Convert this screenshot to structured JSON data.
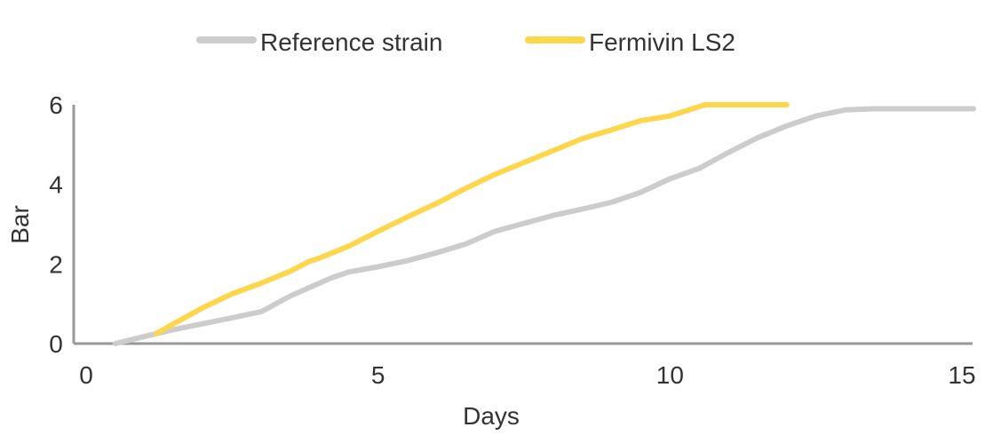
{
  "chart_data": {
    "type": "line",
    "title": "",
    "xlabel": "Days",
    "ylabel": "Bar",
    "xlim": [
      0,
      15.2
    ],
    "ylim": [
      0,
      6.2
    ],
    "x_ticks": [
      0,
      5,
      10,
      15
    ],
    "y_ticks": [
      0,
      2,
      4,
      6
    ],
    "grid": false,
    "legend_placement": "top",
    "series": [
      {
        "name": "Reference strain",
        "color": "#cccccc",
        "x": [
          0.5,
          1.2,
          1.5,
          2.5,
          3.0,
          3.5,
          4.2,
          4.5,
          5.0,
          5.5,
          6.0,
          6.5,
          7.0,
          7.5,
          8.0,
          8.5,
          9.0,
          9.5,
          10.0,
          10.5,
          11.0,
          11.5,
          12.0,
          12.5,
          13.0,
          13.5,
          14.0,
          14.5,
          15.2
        ],
        "values": [
          0.0,
          0.25,
          0.35,
          0.65,
          0.8,
          1.2,
          1.65,
          1.8,
          1.93,
          2.08,
          2.28,
          2.5,
          2.82,
          3.02,
          3.22,
          3.38,
          3.55,
          3.8,
          4.14,
          4.4,
          4.8,
          5.17,
          5.47,
          5.72,
          5.87,
          5.9,
          5.9,
          5.9,
          5.9
        ],
        "line_width": 6
      },
      {
        "name": "Fermivin LS2",
        "color": "#fdd64c",
        "x": [
          1.2,
          1.5,
          2.0,
          2.5,
          3.0,
          3.5,
          3.8,
          4.0,
          4.5,
          5.0,
          5.5,
          6.0,
          6.5,
          7.0,
          7.5,
          8.0,
          8.5,
          9.0,
          9.5,
          10.0,
          10.6,
          11.0,
          11.5,
          12.0
        ],
        "values": [
          0.25,
          0.5,
          0.9,
          1.25,
          1.52,
          1.82,
          2.05,
          2.15,
          2.45,
          2.82,
          3.18,
          3.52,
          3.9,
          4.25,
          4.55,
          4.85,
          5.15,
          5.37,
          5.6,
          5.72,
          6.0,
          6.0,
          6.0,
          6.0
        ],
        "line_width": 6
      }
    ]
  }
}
